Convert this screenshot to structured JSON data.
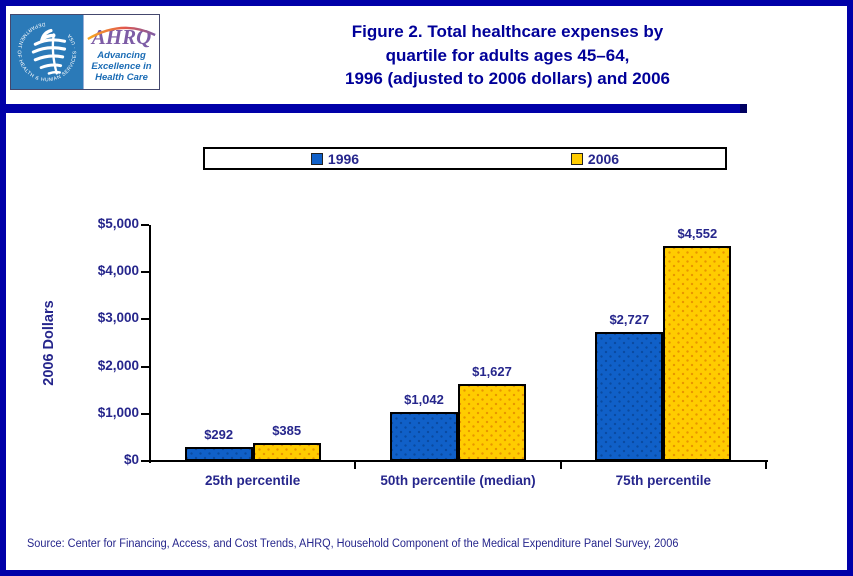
{
  "header": {
    "hhs_seal_text": "DEPARTMENT OF HEALTH & HUMAN SERVICES · USA",
    "ahrq_wordmark": "AHRQ",
    "ahrq_tagline_lines": [
      "Advancing",
      "Excellence in",
      "Health Care"
    ],
    "title_lines": [
      "Figure 2. Total healthcare expenses by",
      "quartile for adults ages 45–64,",
      "1996 (adjusted to 2006 dollars) and 2006"
    ]
  },
  "chart_data": {
    "type": "bar",
    "title": "Figure 2. Total healthcare expenses by quartile for adults ages 45–64, 1996 (adjusted to 2006 dollars) and 2006",
    "categories": [
      "25th percentile",
      "50th percentile (median)",
      "75th percentile"
    ],
    "series": [
      {
        "name": "1996",
        "color": "#1060C8",
        "dot_color": "#0A4AA0",
        "values": [
          292,
          1042,
          2727
        ],
        "value_labels": [
          "$292",
          "$1,042",
          "$2,727"
        ]
      },
      {
        "name": "2006",
        "color": "#FFCC00",
        "dot_color": "#E89500",
        "values": [
          385,
          1627,
          4552
        ],
        "value_labels": [
          "$385",
          "$1,627",
          "$4,552"
        ]
      }
    ],
    "xlabel": "",
    "ylabel": "2006 Dollars",
    "ylim": [
      0,
      5000
    ],
    "ytick_step": 1000,
    "ytick_labels": [
      "$0",
      "$1,000",
      "$2,000",
      "$3,000",
      "$4,000",
      "$5,000"
    ],
    "grid": false,
    "legend_position": "top"
  },
  "source": "Source: Center for Financing, Access, and Cost Trends, AHRQ, Household Component of the Medical Expenditure Panel Survey, 2006",
  "colors": {
    "page_border": "#0000A8",
    "title_navy": "#000099",
    "label_navy": "#26268C",
    "axis_black": "#000000",
    "hhs_blue": "#2B7AB8",
    "ahrq_purple": "#7D5CA6",
    "ahrq_tagline_blue": "#1B6CB5"
  }
}
